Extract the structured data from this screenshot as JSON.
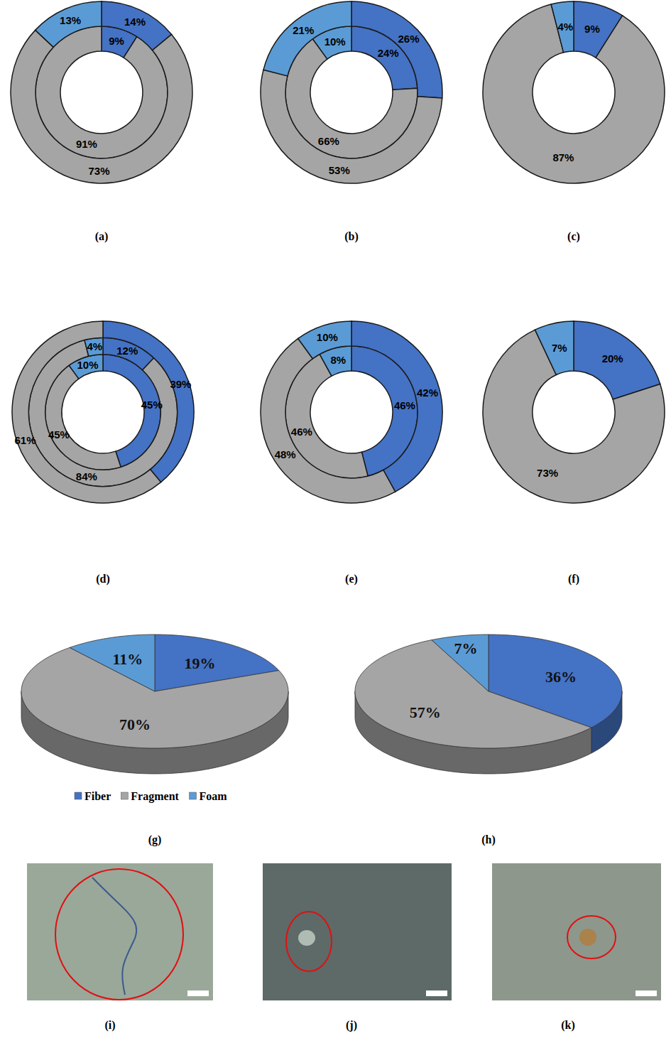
{
  "chart_data": [
    {
      "type": "donut",
      "title": "(a)",
      "categories": [
        "Fiber",
        "Fragment",
        "Foam"
      ],
      "colors": [
        "#4472c4",
        "#a5a5a5",
        "#5b9bd5"
      ],
      "data_labels": true,
      "series": [
        {
          "values": [
            9,
            91,
            null
          ],
          "value_labels": [
            "9%",
            "91%",
            null
          ]
        },
        {
          "values": [
            14,
            73,
            13
          ],
          "value_labels": [
            "14%",
            "73%",
            "13%"
          ]
        }
      ]
    },
    {
      "type": "donut",
      "title": "(b)",
      "categories": [
        "Fiber",
        "Fragment",
        "Foam"
      ],
      "colors": [
        "#4472c4",
        "#a5a5a5",
        "#5b9bd5"
      ],
      "data_labels": true,
      "series": [
        {
          "values": [
            24,
            66,
            10
          ],
          "value_labels": [
            "24%",
            "66%",
            "10%"
          ]
        },
        {
          "values": [
            26,
            53,
            21
          ],
          "value_labels": [
            "26%",
            "53%",
            "21%"
          ]
        }
      ]
    },
    {
      "type": "donut",
      "title": "(c)",
      "categories": [
        "Fiber",
        "Fragment",
        "Foam"
      ],
      "colors": [
        "#4472c4",
        "#a5a5a5",
        "#5b9bd5"
      ],
      "data_labels": true,
      "series": [
        {
          "values": [
            9,
            87,
            4
          ],
          "value_labels": [
            "9%",
            "87%",
            "4%"
          ]
        }
      ]
    },
    {
      "type": "donut",
      "title": "(d)",
      "categories": [
        "Fiber",
        "Fragment",
        "Foam"
      ],
      "colors": [
        "#4472c4",
        "#a5a5a5",
        "#5b9bd5"
      ],
      "data_labels": true,
      "series": [
        {
          "values": [
            45,
            45,
            10
          ],
          "value_labels": [
            "45%",
            "45%",
            "10%"
          ]
        },
        {
          "values": [
            12,
            84,
            4
          ],
          "value_labels": [
            "12%",
            "84%",
            "4%"
          ]
        },
        {
          "values": [
            39,
            61,
            null
          ],
          "value_labels": [
            "39%",
            "61%",
            null
          ]
        }
      ]
    },
    {
      "type": "donut",
      "title": "(e)",
      "categories": [
        "Fiber",
        "Fragment",
        "Foam"
      ],
      "colors": [
        "#4472c4",
        "#a5a5a5",
        "#5b9bd5"
      ],
      "data_labels": true,
      "series": [
        {
          "values": [
            46,
            46,
            8
          ],
          "value_labels": [
            "46%",
            "46%",
            "8%"
          ]
        },
        {
          "values": [
            42,
            48,
            10
          ],
          "value_labels": [
            "42%",
            "48%",
            "10%"
          ]
        }
      ]
    },
    {
      "type": "donut",
      "title": "(f)",
      "categories": [
        "Fiber",
        "Fragment",
        "Foam"
      ],
      "colors": [
        "#4472c4",
        "#a5a5a5",
        "#5b9bd5"
      ],
      "data_labels": true,
      "series": [
        {
          "values": [
            20,
            73,
            7
          ],
          "value_labels": [
            "20%",
            "73%",
            "7%"
          ]
        }
      ]
    },
    {
      "type": "pie",
      "title": "(g)",
      "categories": [
        "Fiber",
        "Fragment",
        "Foam"
      ],
      "colors": [
        "#4472c4",
        "#a5a5a5",
        "#5b9bd5"
      ],
      "data_labels": true,
      "legend": "bottom",
      "series": [
        {
          "values": [
            19,
            70,
            11
          ],
          "value_labels": [
            "19%",
            "70%",
            "11%"
          ]
        }
      ]
    },
    {
      "type": "pie",
      "title": "(h)",
      "categories": [
        "Fiber",
        "Fragment",
        "Foam"
      ],
      "colors": [
        "#4472c4",
        "#a5a5a5",
        "#5b9bd5"
      ],
      "data_labels": true,
      "series": [
        {
          "values": [
            36,
            57,
            7
          ],
          "value_labels": [
            "36%",
            "57%",
            "7%"
          ]
        }
      ]
    }
  ],
  "images": [
    {
      "label": "(i)"
    },
    {
      "label": "(j)"
    },
    {
      "label": "(k)"
    }
  ]
}
